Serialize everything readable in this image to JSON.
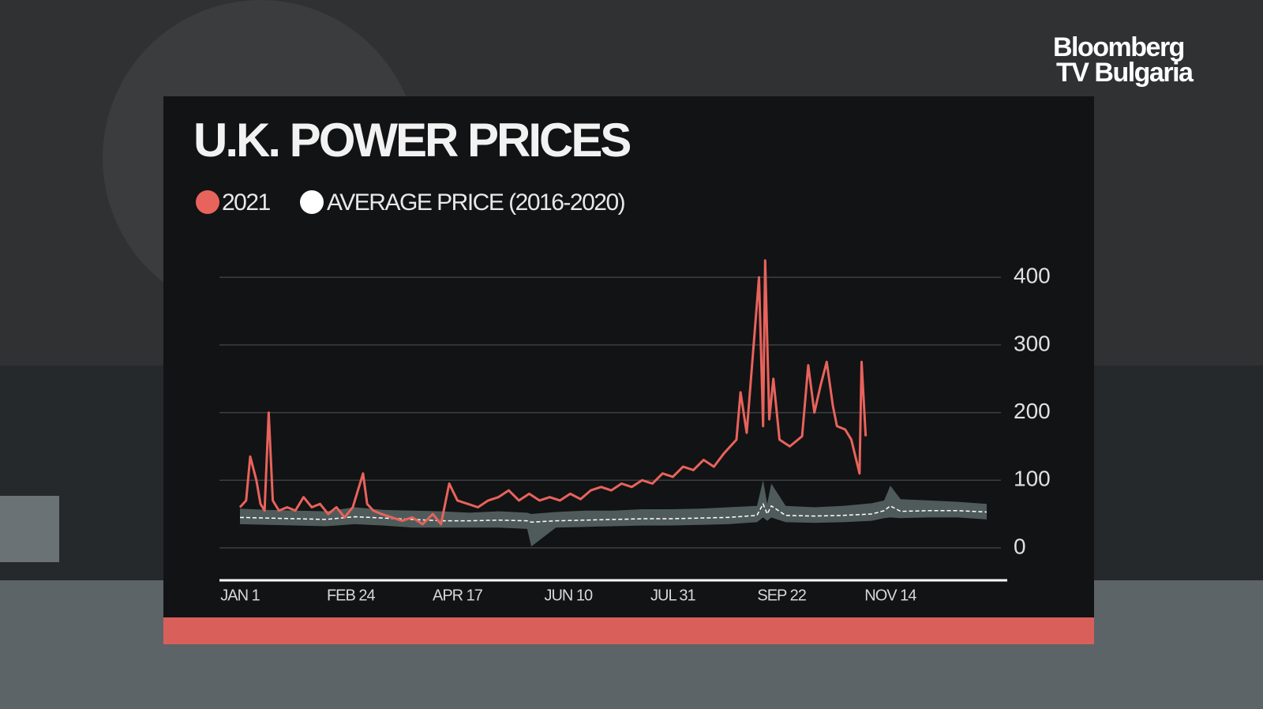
{
  "chart_data": {
    "type": "line",
    "title": "U.K. POWER PRICES",
    "xlim": [
      -9,
      375
    ],
    "xticks": [
      {
        "value": 1,
        "label": "JAN 1"
      },
      {
        "value": 55,
        "label": "FEB 24"
      },
      {
        "value": 107,
        "label": "APR 17"
      },
      {
        "value": 161,
        "label": "JUN 10"
      },
      {
        "value": 212,
        "label": "JUL 31"
      },
      {
        "value": 265,
        "label": "SEP 22"
      },
      {
        "value": 318,
        "label": "NOV 14"
      }
    ],
    "ylim": [
      -48,
      440
    ],
    "yticks": [
      0,
      100,
      200,
      300,
      400
    ],
    "grid": true,
    "series": [
      {
        "name": "2021",
        "color": "#e8635c",
        "x": [
          1,
          4,
          6,
          9,
          11,
          13,
          15,
          17,
          20,
          24,
          28,
          32,
          36,
          40,
          44,
          48,
          52,
          56,
          61,
          63,
          66,
          70,
          75,
          80,
          85,
          90,
          95,
          99,
          103,
          107,
          112,
          117,
          122,
          127,
          132,
          137,
          142,
          147,
          152,
          157,
          162,
          167,
          172,
          177,
          182,
          187,
          192,
          197,
          202,
          207,
          212,
          217,
          222,
          227,
          232,
          237,
          243,
          245,
          248,
          251,
          254,
          256,
          257,
          259,
          261,
          264,
          269,
          275,
          278,
          281,
          284,
          287,
          290,
          292,
          296,
          299,
          303,
          304,
          306
        ],
        "values": [
          60,
          70,
          135,
          100,
          65,
          55,
          200,
          70,
          55,
          60,
          55,
          75,
          60,
          65,
          50,
          60,
          45,
          60,
          110,
          65,
          55,
          50,
          45,
          40,
          45,
          35,
          50,
          35,
          95,
          70,
          65,
          60,
          70,
          75,
          85,
          70,
          80,
          70,
          75,
          70,
          80,
          72,
          85,
          90,
          85,
          95,
          90,
          100,
          95,
          110,
          105,
          120,
          115,
          130,
          120,
          140,
          160,
          230,
          170,
          285,
          400,
          180,
          425,
          190,
          250,
          160,
          150,
          165,
          270,
          200,
          240,
          275,
          210,
          180,
          175,
          160,
          110,
          275,
          165
        ]
      },
      {
        "name": "AVERAGE PRICE (2016-2020)",
        "color": "#ffffff",
        "x": [
          1,
          15,
          29,
          43,
          57,
          71,
          85,
          99,
          113,
          127,
          141,
          143,
          155,
          169,
          183,
          197,
          211,
          225,
          239,
          253,
          256,
          258,
          260,
          267,
          281,
          295,
          309,
          315,
          318,
          323,
          337,
          351,
          365
        ],
        "values": [
          45,
          44,
          43,
          42,
          46,
          44,
          42,
          40,
          40,
          41,
          40,
          38,
          40,
          41,
          42,
          43,
          43,
          44,
          45,
          48,
          65,
          50,
          62,
          48,
          47,
          48,
          50,
          55,
          62,
          54,
          55,
          55,
          53
        ],
        "range": {
          "color": "#5b6866",
          "low": [
            35,
            34,
            33,
            32,
            35,
            33,
            30,
            30,
            30,
            30,
            28,
            2,
            30,
            31,
            32,
            33,
            33,
            34,
            35,
            38,
            45,
            40,
            45,
            38,
            37,
            38,
            40,
            44,
            45,
            44,
            45,
            45,
            42
          ],
          "high": [
            58,
            56,
            55,
            54,
            60,
            56,
            55,
            54,
            52,
            54,
            52,
            50,
            53,
            55,
            55,
            57,
            57,
            58,
            60,
            62,
            100,
            65,
            95,
            62,
            60,
            62,
            66,
            70,
            92,
            72,
            70,
            68,
            65
          ]
        }
      }
    ]
  },
  "logo": {
    "line1": "Bloomberg",
    "line2": "TV Bulgaria"
  }
}
